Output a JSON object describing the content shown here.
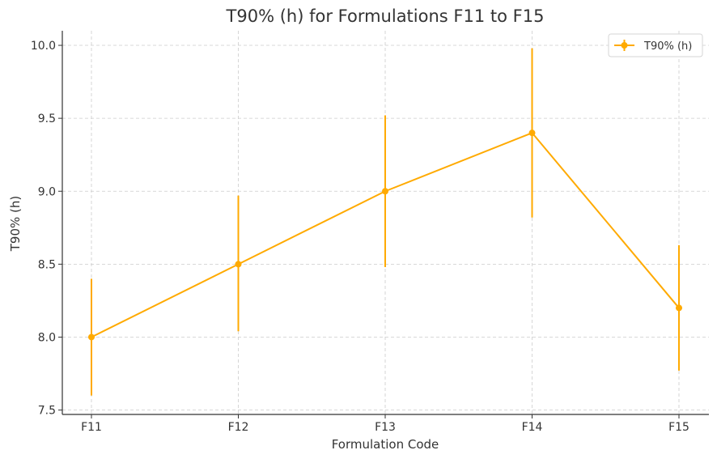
{
  "chart_data": {
    "type": "line",
    "title": "T90% (h) for Formulations F11 to F15",
    "xlabel": "Formulation Code",
    "ylabel": "T90% (h)",
    "categories": [
      "F11",
      "F12",
      "F13",
      "F14",
      "F15"
    ],
    "series": [
      {
        "name": "T90% (h)",
        "values": [
          8.0,
          8.5,
          9.0,
          9.4,
          8.2
        ],
        "error_low": [
          7.6,
          8.04,
          8.48,
          8.82,
          7.77
        ],
        "error_high": [
          8.4,
          8.97,
          9.52,
          9.98,
          8.63
        ],
        "color": "#FFAA00"
      }
    ],
    "ylim": [
      7.47,
      10.1
    ],
    "yticks": [
      7.5,
      8.0,
      8.5,
      9.0,
      9.5,
      10.0
    ],
    "ytick_labels": [
      "7.5",
      "8.0",
      "8.5",
      "9.0",
      "9.5",
      "10.0"
    ],
    "grid": true,
    "legend_position": "top-right"
  }
}
